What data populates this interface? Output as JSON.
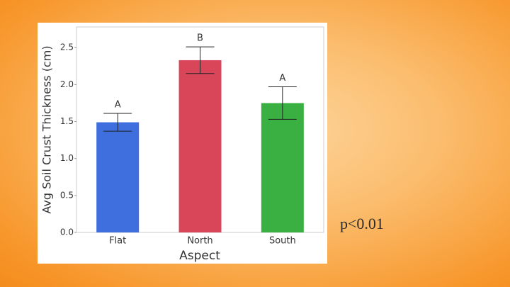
{
  "chart_data": {
    "type": "bar",
    "x_label": "Aspect",
    "y_label": "Avg Soil Crust Thickness (cm)",
    "categories": [
      "Flat",
      "North",
      "South"
    ],
    "values": [
      1.49,
      2.33,
      1.75
    ],
    "errors": [
      0.12,
      0.18,
      0.22
    ],
    "letters": [
      "A",
      "B",
      "A"
    ],
    "colors": [
      "#3f6fde",
      "#d9465a",
      "#3ab043"
    ],
    "ylim": [
      0,
      2.78
    ],
    "yticks": [
      {
        "value": 0,
        "label": "0.0"
      },
      0.5,
      {
        "value": 1,
        "label": "1.0"
      },
      1.5,
      {
        "value": 2,
        "label": "2.0"
      },
      2.5
    ],
    "annotation": "p<0.01"
  }
}
